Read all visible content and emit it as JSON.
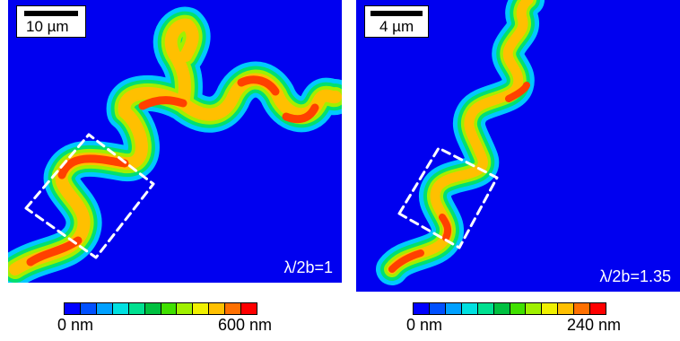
{
  "panels": [
    {
      "scale_label": "10 µm",
      "ratio_label": "λ/2b=1",
      "colorbar_min": "0 nm",
      "colorbar_max": "600 nm"
    },
    {
      "scale_label": "4 µm",
      "ratio_label": "λ/2b=1.35",
      "colorbar_min": "0 nm",
      "colorbar_max": "240 nm"
    }
  ],
  "colors": {
    "background": "#0000f0",
    "colormap": [
      "#0000ff",
      "#0050ff",
      "#00a0ff",
      "#00e0e0",
      "#00e090",
      "#00c040",
      "#40e000",
      "#a0f000",
      "#f0f000",
      "#ffc000",
      "#ff7000",
      "#ff0000"
    ],
    "dashed_box": "#ffffff"
  }
}
